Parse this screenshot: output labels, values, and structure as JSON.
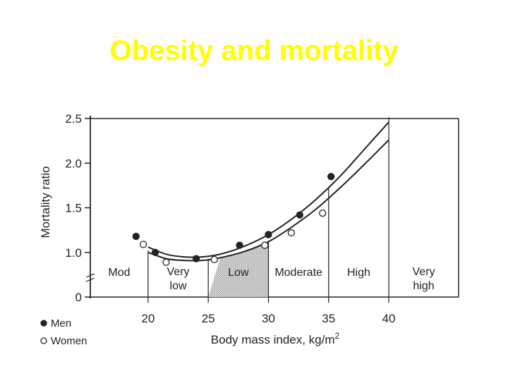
{
  "slide": {
    "title": "Obesity and mortality"
  },
  "colors": {
    "title": "#ffff00",
    "ink": "#222222",
    "shade": "#c8c8c8"
  },
  "chart_data": {
    "type": "scatter",
    "xlabel": "Body mass index, kg/m",
    "xlabel_sup": "2",
    "ylabel": "Mortality ratio",
    "x_ticks": [
      20,
      25,
      30,
      35,
      40
    ],
    "y_ticks": [
      {
        "value": 0,
        "label": "0"
      },
      {
        "value": 1.0,
        "label": "1.0"
      },
      {
        "value": 1.5,
        "label": "1.5"
      },
      {
        "value": 2.0,
        "label": "2.0"
      },
      {
        "value": 2.5,
        "label": "2.5"
      }
    ],
    "xlim": [
      15.2,
      45.8
    ],
    "ylim": [
      0,
      2.5
    ],
    "y_axis_break": [
      0,
      0.5
    ],
    "bands": [
      {
        "label": "Mod",
        "from": 15.2,
        "to": 20
      },
      {
        "label": "Very low",
        "lines": [
          "Very",
          "low"
        ],
        "from": 20,
        "to": 25
      },
      {
        "label": "Low",
        "from": 25,
        "to": 30,
        "shaded": true
      },
      {
        "label": "Moderate",
        "from": 30,
        "to": 35
      },
      {
        "label": "High",
        "from": 35,
        "to": 40
      },
      {
        "label": "Very high",
        "lines": [
          "Very",
          "high"
        ],
        "from": 40,
        "to": 45.8
      }
    ],
    "series": [
      {
        "name": "Men",
        "marker": "filled",
        "points": [
          [
            19,
            1.18
          ],
          [
            20.6,
            1.0
          ],
          [
            24,
            0.93
          ],
          [
            27.6,
            1.08
          ],
          [
            30,
            1.2
          ],
          [
            32.6,
            1.42
          ],
          [
            35.2,
            1.85
          ]
        ],
        "curve": [
          [
            20,
            1.06
          ],
          [
            21.5,
            0.98
          ],
          [
            23,
            0.95
          ],
          [
            24.5,
            0.95
          ],
          [
            26,
            0.98
          ],
          [
            28,
            1.07
          ],
          [
            30,
            1.2
          ],
          [
            32,
            1.38
          ],
          [
            34,
            1.6
          ],
          [
            36,
            1.86
          ],
          [
            38,
            2.16
          ],
          [
            40,
            2.46
          ]
        ]
      },
      {
        "name": "Women",
        "marker": "open",
        "points": [
          [
            19.6,
            1.09
          ],
          [
            21.5,
            0.89
          ],
          [
            25.5,
            0.92
          ],
          [
            29.7,
            1.08
          ],
          [
            31.9,
            1.22
          ],
          [
            34.5,
            1.44
          ]
        ],
        "curve": [
          [
            20,
            1.0
          ],
          [
            21.5,
            0.93
          ],
          [
            23,
            0.91
          ],
          [
            24.5,
            0.91
          ],
          [
            26,
            0.94
          ],
          [
            28,
            1.01
          ],
          [
            30,
            1.12
          ],
          [
            32,
            1.29
          ],
          [
            34,
            1.49
          ],
          [
            36,
            1.73
          ],
          [
            38,
            1.99
          ],
          [
            40,
            2.26
          ]
        ]
      }
    ],
    "legend": {
      "position": "bottom-left",
      "entries": [
        "Men",
        "Women"
      ]
    }
  }
}
